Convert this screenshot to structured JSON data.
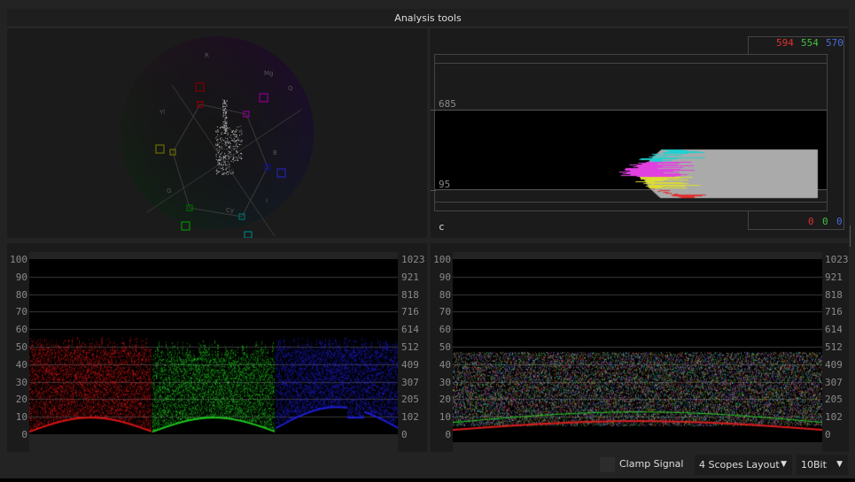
{
  "window": {
    "title": "Analysis tools"
  },
  "vectorscope": {
    "targets": [
      "R",
      "Mg",
      "Q",
      "B",
      "I",
      "Cy",
      "G",
      "Yl"
    ]
  },
  "histogram": {
    "upper_label": "685",
    "lower_label": "95",
    "channel_label": "c",
    "max_counts": {
      "r": "594",
      "g": "554",
      "b": "570"
    },
    "min_counts": {
      "r": "0",
      "g": "0",
      "b": "0"
    }
  },
  "parade": {
    "left_ticks": [
      "100",
      "90",
      "80",
      "70",
      "60",
      "50",
      "40",
      "30",
      "20",
      "10",
      "0"
    ],
    "right_ticks": [
      "1023",
      "921",
      "818",
      "716",
      "614",
      "512",
      "409",
      "307",
      "205",
      "102",
      "0"
    ]
  },
  "waveform": {
    "left_ticks": [
      "100",
      "90",
      "80",
      "70",
      "60",
      "50",
      "40",
      "30",
      "20",
      "10",
      "0"
    ],
    "right_ticks": [
      "1023",
      "921",
      "818",
      "716",
      "614",
      "512",
      "409",
      "307",
      "205",
      "102",
      "0"
    ]
  },
  "bottom": {
    "clamp_label": "Clamp Signal",
    "clamp_checked": false,
    "layout_select": "4 Scopes Layout",
    "bitdepth_select": "10Bit"
  },
  "colors": {
    "red": "#e03030",
    "green": "#40c040",
    "blue": "#4a6ad8"
  }
}
